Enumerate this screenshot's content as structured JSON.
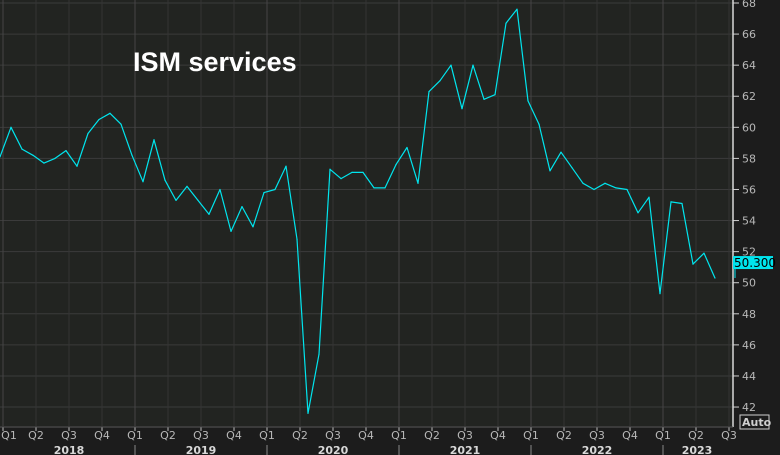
{
  "chart_data": {
    "type": "line",
    "title": "ISM services",
    "x_start": "2017-12",
    "frequency": "monthly",
    "x_tick_labels": [
      "Q1",
      "Q2",
      "Q3",
      "Q4",
      "Q1",
      "Q2",
      "Q3",
      "Q4",
      "Q1",
      "Q2",
      "Q3",
      "Q4",
      "Q1",
      "Q2",
      "Q3",
      "Q4",
      "Q1",
      "Q2",
      "Q3",
      "Q4",
      "Q1",
      "Q2",
      "Q3"
    ],
    "year_labels": [
      "2018",
      "2019",
      "2020",
      "2021",
      "2022",
      "2023"
    ],
    "ylim": [
      41,
      68
    ],
    "y_ticks": [
      42,
      44,
      46,
      48,
      50,
      52,
      54,
      56,
      58,
      60,
      62,
      64,
      66,
      68
    ],
    "grid": true,
    "series": [
      {
        "values": [
          58.1,
          60.0,
          58.6,
          58.2,
          57.7,
          58.0,
          58.5,
          57.5,
          59.6,
          60.5,
          60.9,
          60.2,
          58.2,
          56.5,
          59.2,
          56.6,
          55.3,
          56.2,
          55.3,
          54.4,
          56.0,
          53.3,
          54.9,
          53.6,
          55.8,
          56.0,
          57.5,
          52.8,
          41.6,
          45.4,
          57.3,
          56.7,
          57.1,
          57.1,
          56.1,
          56.1,
          57.6,
          58.7,
          56.4,
          62.3,
          63.0,
          64.0,
          61.2,
          64.0,
          61.8,
          62.1,
          66.7,
          67.6,
          61.7,
          60.2,
          57.2,
          58.4,
          57.4,
          56.4,
          56.0,
          56.4,
          56.1,
          56.0,
          54.5,
          55.5,
          49.3,
          55.2,
          55.1,
          51.2,
          51.9,
          50.3
        ],
        "color": "#00e5ee"
      }
    ],
    "last_value_label": "50.300",
    "scale_button": "Auto"
  },
  "colors": {
    "background": "#1c1c1c",
    "plot": "#222421",
    "grid": "#3b3b3b",
    "line": "#00e5ee"
  }
}
